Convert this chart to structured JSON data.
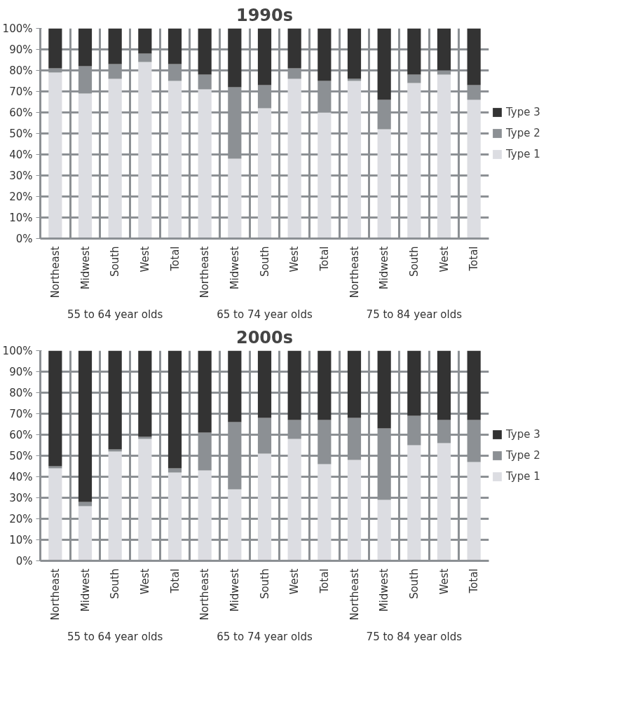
{
  "chart_data": [
    {
      "type": "bar",
      "title": "1990s",
      "stacked": true,
      "legend": "right",
      "grid": true,
      "categories": [
        "Northeast",
        "Midwest",
        "South",
        "West",
        "Total",
        "Northeast",
        "Midwest",
        "South",
        "West",
        "Total",
        "Northeast",
        "Midwest",
        "South",
        "West",
        "Total"
      ],
      "annotations": [
        "55 to 64 year olds",
        "65 to 74 year olds",
        "75 to 84 year olds"
      ],
      "ylim": [
        0,
        100
      ],
      "yticks": [
        {
          "value": 0,
          "label": "0%"
        },
        {
          "value": 10,
          "label": "10%"
        },
        {
          "value": 20,
          "label": "20%"
        },
        {
          "value": 30,
          "label": "30%"
        },
        {
          "value": 40,
          "label": "40%"
        },
        {
          "value": 50,
          "label": "50%"
        },
        {
          "value": 60,
          "label": "60%"
        },
        {
          "value": 70,
          "label": "70%"
        },
        {
          "value": 80,
          "label": "80%"
        },
        {
          "value": 90,
          "label": "90%"
        },
        {
          "value": 100,
          "label": "100%"
        }
      ],
      "series": [
        {
          "name": "Type 1",
          "color": "#dcdde2",
          "values": [
            79,
            69,
            76,
            84,
            75,
            71,
            38,
            62,
            76,
            60,
            75,
            52,
            74,
            78,
            66
          ]
        },
        {
          "name": "Type 2",
          "color": "#8c9094",
          "values": [
            2,
            13,
            7,
            4,
            8,
            7,
            34,
            11,
            5,
            15,
            1,
            14,
            4,
            2,
            7
          ]
        },
        {
          "name": "Type 3",
          "color": "#333333",
          "values": [
            19,
            18,
            17,
            12,
            17,
            22,
            28,
            27,
            19,
            25,
            24,
            34,
            22,
            20,
            27
          ]
        }
      ]
    },
    {
      "type": "bar",
      "title": "2000s",
      "stacked": true,
      "legend": "right",
      "grid": true,
      "categories": [
        "Northeast",
        "Midwest",
        "South",
        "West",
        "Total",
        "Northeast",
        "Midwest",
        "South",
        "West",
        "Total",
        "Northeast",
        "Midwest",
        "South",
        "West",
        "Total"
      ],
      "annotations": [
        "55 to 64 year olds",
        "65 to 74 year olds",
        "75 to 84 year olds"
      ],
      "ylim": [
        0,
        100
      ],
      "yticks": [
        {
          "value": 0,
          "label": "0%"
        },
        {
          "value": 10,
          "label": "10%"
        },
        {
          "value": 20,
          "label": "20%"
        },
        {
          "value": 30,
          "label": "30%"
        },
        {
          "value": 40,
          "label": "40%"
        },
        {
          "value": 50,
          "label": "50%"
        },
        {
          "value": 60,
          "label": "60%"
        },
        {
          "value": 70,
          "label": "70%"
        },
        {
          "value": 80,
          "label": "80%"
        },
        {
          "value": 90,
          "label": "90%"
        },
        {
          "value": 100,
          "label": "100%"
        }
      ],
      "series": [
        {
          "name": "Type 1",
          "color": "#dcdde2",
          "values": [
            44,
            26,
            52,
            58,
            42,
            43,
            34,
            51,
            58,
            46,
            48,
            29,
            55,
            56,
            47
          ]
        },
        {
          "name": "Type 2",
          "color": "#8c9094",
          "values": [
            1,
            2,
            1,
            1,
            2,
            18,
            32,
            17,
            9,
            21,
            20,
            34,
            14,
            11,
            20
          ]
        },
        {
          "name": "Type 3",
          "color": "#333333",
          "values": [
            55,
            72,
            47,
            41,
            56,
            39,
            34,
            32,
            33,
            33,
            32,
            37,
            31,
            33,
            33
          ]
        }
      ]
    }
  ]
}
